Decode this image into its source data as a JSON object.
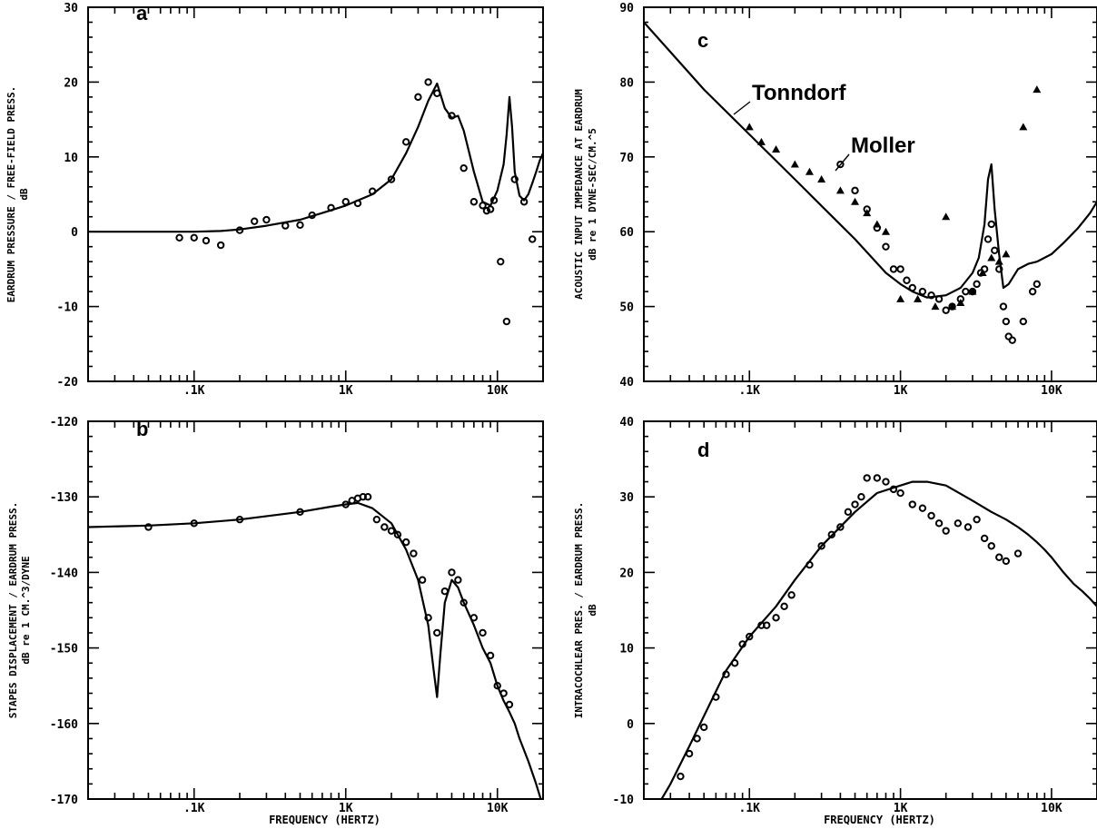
{
  "chart_data": [
    {
      "type": "line",
      "panel_label": "a",
      "ylabel": [
        "EARDRUM PRESSURE / FREE-FIELD PRESS.",
        "dB"
      ],
      "xlabel": "",
      "xscale": "log",
      "xlim": [
        20,
        20000
      ],
      "ylim": [
        -20,
        30
      ],
      "yticks": [
        -20,
        -10,
        0,
        10,
        20,
        30
      ],
      "yticklabels": [
        "-20",
        "-10",
        "0",
        "10",
        "20",
        "30"
      ],
      "xticks": [
        100,
        1000,
        10000
      ],
      "xticklabels": [
        ".1K",
        "1K",
        "10K"
      ],
      "series": [
        {
          "kind": "line",
          "x": [
            20,
            50,
            100,
            150,
            200,
            300,
            500,
            700,
            1000,
            1500,
            2000,
            2500,
            3000,
            3500,
            4000,
            4500,
            5000,
            5500,
            6000,
            7000,
            8000,
            9000,
            10000,
            11000,
            11500,
            12000,
            12500,
            13000,
            14000,
            15000,
            16000,
            17000,
            18000,
            19000,
            20000
          ],
          "y": [
            0,
            0,
            0,
            0.1,
            0.3,
            0.8,
            1.6,
            2.5,
            3.5,
            5.0,
            7.0,
            10.5,
            14.0,
            17.5,
            19.8,
            16.5,
            15.2,
            15.5,
            13.5,
            8.0,
            4.0,
            3.5,
            5.5,
            9.0,
            13.0,
            18.0,
            14.0,
            8.0,
            4.8,
            4.2,
            5.0,
            6.5,
            8.0,
            9.5,
            10.5
          ]
        },
        {
          "kind": "marker",
          "marker": "circle",
          "x": [
            80,
            100,
            120,
            150,
            200,
            250,
            300,
            400,
            500,
            600,
            800,
            1000,
            1200,
            1500,
            2000,
            2500,
            3000,
            3500,
            4000,
            5000,
            6000,
            7000,
            8000,
            8500,
            9000,
            9500,
            10500,
            11500,
            13000,
            15000,
            17000
          ],
          "y": [
            -0.8,
            -0.8,
            -1.2,
            -1.8,
            0.2,
            1.4,
            1.6,
            0.8,
            0.9,
            2.2,
            3.2,
            4.0,
            3.8,
            5.4,
            7.0,
            12.0,
            18.0,
            20.0,
            18.5,
            15.5,
            8.5,
            4.0,
            3.5,
            2.8,
            3.0,
            4.2,
            -4.0,
            -12.0,
            7.0,
            4.0,
            -1.0
          ]
        }
      ]
    },
    {
      "type": "line",
      "panel_label": "b",
      "ylabel": [
        "STAPES DISPLACEMENT / EARDRUM PRESS.",
        "dB re 1 CM.^3/DYNE"
      ],
      "xlabel": "FREQUENCY (HERTZ)",
      "xscale": "log",
      "xlim": [
        20,
        20000
      ],
      "ylim": [
        -170,
        -120
      ],
      "yticks": [
        -170,
        -160,
        -150,
        -140,
        -130,
        -120
      ],
      "yticklabels": [
        "-170",
        "-160",
        "-150",
        "-140",
        "-130",
        "-120"
      ],
      "xticks": [
        100,
        1000,
        10000
      ],
      "xticklabels": [
        ".1K",
        "1K",
        "10K"
      ],
      "series": [
        {
          "kind": "line",
          "x": [
            20,
            50,
            100,
            200,
            500,
            800,
            1000,
            1200,
            1500,
            2000,
            2500,
            3000,
            3500,
            3800,
            4000,
            4200,
            4500,
            5000,
            5500,
            6000,
            7000,
            8000,
            9000,
            10000,
            11000,
            12000,
            13000,
            14000,
            16000,
            18000,
            20000
          ],
          "y": [
            -134,
            -133.8,
            -133.5,
            -133,
            -132,
            -131.3,
            -131,
            -130.8,
            -131.5,
            -133.5,
            -137,
            -141,
            -147,
            -153,
            -156.5,
            -151,
            -144,
            -141,
            -142,
            -144,
            -147,
            -150,
            -152,
            -155,
            -157,
            -158.5,
            -160,
            -162,
            -165,
            -168,
            -171
          ]
        },
        {
          "kind": "marker",
          "marker": "circle",
          "x": [
            50,
            100,
            200,
            500,
            1000,
            1100,
            1200,
            1300,
            1400,
            1600,
            1800,
            2000,
            2200,
            2500,
            2800,
            3200,
            3500,
            4000,
            4500,
            5000,
            5500,
            6000,
            7000,
            8000,
            9000,
            10000,
            11000,
            12000
          ],
          "y": [
            -134,
            -133.5,
            -133,
            -132,
            -131,
            -130.5,
            -130.2,
            -130,
            -130,
            -133,
            -134,
            -134.5,
            -135,
            -136,
            -137.5,
            -141,
            -146,
            -148,
            -142.5,
            -140,
            -141,
            -144,
            -146,
            -148,
            -151,
            -155,
            -156,
            -157.5
          ]
        }
      ]
    },
    {
      "type": "line",
      "panel_label": "c",
      "ylabel": [
        "ACOUSTIC INPUT IMPEDANCE AT EARDRUM",
        "dB re 1 DYNE-SEC/CM.^5"
      ],
      "xlabel": "",
      "xscale": "log",
      "xlim": [
        20,
        20000
      ],
      "ylim": [
        40,
        90
      ],
      "yticks": [
        40,
        50,
        60,
        70,
        80,
        90
      ],
      "yticklabels": [
        "40",
        "50",
        "60",
        "70",
        "80",
        "90"
      ],
      "xticks": [
        100,
        1000,
        10000
      ],
      "xticklabels": [
        ".1K",
        "1K",
        "10K"
      ],
      "annotations": [
        "Tonndorf",
        "Moller"
      ],
      "series": [
        {
          "kind": "line",
          "x": [
            20,
            50,
            100,
            200,
            500,
            800,
            1000,
            1200,
            1500,
            2000,
            2500,
            3000,
            3300,
            3600,
            3800,
            4000,
            4200,
            4500,
            4800,
            5200,
            6000,
            7000,
            8000,
            10000,
            12000,
            15000,
            18000,
            20000
          ],
          "y": [
            88,
            79,
            73,
            67,
            59,
            54.5,
            53,
            52,
            51.2,
            51.5,
            52.5,
            54.5,
            56.5,
            61,
            67,
            69,
            63,
            57,
            52.5,
            53,
            55,
            55.7,
            56,
            57,
            58.5,
            60.5,
            62.5,
            64
          ]
        },
        {
          "kind": "marker",
          "marker": "circle",
          "x": [
            400,
            500,
            600,
            700,
            800,
            900,
            1000,
            1100,
            1200,
            1400,
            1600,
            1800,
            2000,
            2200,
            2500,
            2700,
            3000,
            3200,
            3400,
            3600,
            3800,
            4000,
            4200,
            4500,
            4800,
            5000,
            5200,
            5500,
            6500,
            7500,
            8000
          ],
          "y": [
            69,
            65.5,
            63,
            60.5,
            58,
            55,
            55,
            53.5,
            52.5,
            52,
            51.5,
            51,
            49.5,
            50,
            51,
            52,
            52,
            53,
            54.5,
            55,
            59,
            61,
            57.5,
            55,
            50,
            48,
            46,
            45.5,
            48,
            52,
            53
          ]
        },
        {
          "kind": "marker",
          "marker": "triangle",
          "x": [
            100,
            120,
            150,
            200,
            250,
            300,
            400,
            500,
            600,
            700,
            800,
            1000,
            1300,
            1700,
            2000,
            2200,
            2500,
            3000,
            3500,
            4000,
            4500,
            5000,
            6500,
            8000
          ],
          "y": [
            74,
            72,
            71,
            69,
            68,
            67,
            65.5,
            64,
            62.5,
            61,
            60,
            51,
            51,
            50,
            62,
            50,
            50.5,
            52,
            54.5,
            56.5,
            56,
            57,
            74,
            79
          ]
        }
      ]
    },
    {
      "type": "line",
      "panel_label": "d",
      "ylabel": [
        "INTRACOCHLEAR PRES. / EARDRUM PRESS.",
        "dB"
      ],
      "xlabel": "FREQUENCY (HERTZ)",
      "xscale": "log",
      "xlim": [
        20,
        20000
      ],
      "ylim": [
        -10,
        40
      ],
      "yticks": [
        -10,
        0,
        10,
        20,
        30,
        40
      ],
      "yticklabels": [
        "-10",
        "0",
        "10",
        "20",
        "30",
        "40"
      ],
      "xticks": [
        100,
        1000,
        10000
      ],
      "xticklabels": [
        ".1K",
        "1K",
        "10K"
      ],
      "series": [
        {
          "kind": "line",
          "x": [
            20,
            30,
            40,
            50,
            70,
            100,
            150,
            200,
            300,
            500,
            700,
            1000,
            1200,
            1500,
            2000,
            3000,
            4000,
            5000,
            6000,
            7000,
            8000,
            9000,
            10000,
            12000,
            14000,
            16000,
            18000,
            20000
          ],
          "y": [
            -14,
            -8,
            -3,
            1,
            7,
            11.5,
            15.5,
            19,
            23.5,
            28,
            30.5,
            31.5,
            32,
            32,
            31.5,
            29.5,
            28,
            27,
            26,
            25,
            24,
            23,
            22,
            20,
            18.5,
            17.5,
            16.5,
            15.5
          ]
        },
        {
          "kind": "marker",
          "marker": "circle",
          "x": [
            35,
            40,
            45,
            50,
            60,
            70,
            80,
            90,
            100,
            120,
            130,
            150,
            170,
            190,
            250,
            300,
            350,
            400,
            450,
            500,
            550,
            600,
            700,
            800,
            900,
            1000,
            1200,
            1400,
            1600,
            1800,
            2000,
            2400,
            2800,
            3200,
            3600,
            4000,
            4500,
            5000,
            6000
          ],
          "y": [
            -7,
            -4,
            -2,
            -0.5,
            3.5,
            6.5,
            8,
            10.5,
            11.5,
            13,
            13,
            14,
            15.5,
            17,
            21,
            23.5,
            25,
            26,
            28,
            29,
            30,
            32.5,
            32.5,
            32,
            31,
            30.5,
            29,
            28.5,
            27.5,
            26.5,
            25.5,
            26.5,
            26,
            27,
            24.5,
            23.5,
            22,
            21.5,
            22.5
          ]
        }
      ]
    }
  ]
}
